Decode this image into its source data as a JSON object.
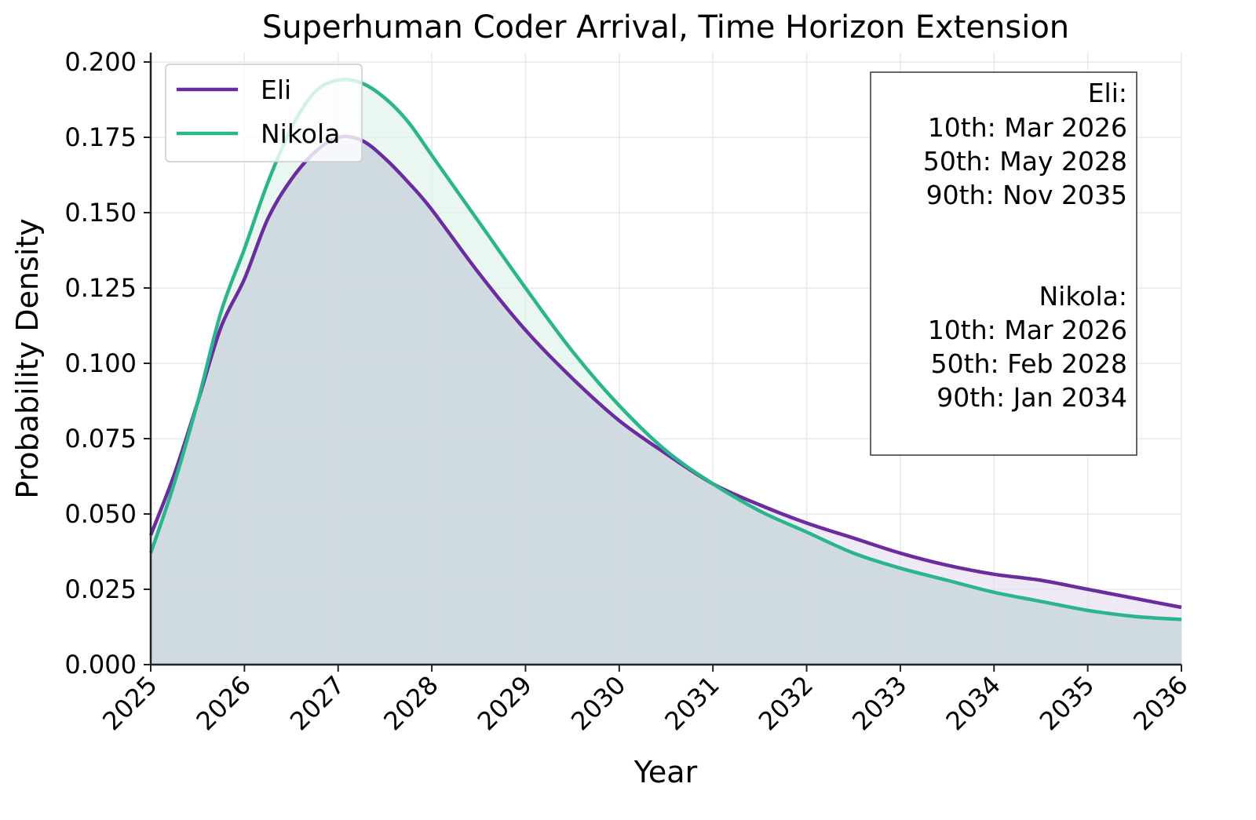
{
  "chart_data": {
    "type": "area",
    "title": "Superhuman Coder Arrival, Time Horizon Extension",
    "xlabel": "Year",
    "ylabel": "Probability Density",
    "xlim": [
      2025,
      2036
    ],
    "ylim": [
      0,
      0.2
    ],
    "x_ticks": [
      "2025",
      "2026",
      "2027",
      "2028",
      "2029",
      "2030",
      "2031",
      "2032",
      "2033",
      "2034",
      "2035",
      "2036"
    ],
    "y_ticks": [
      "0.000",
      "0.025",
      "0.050",
      "0.075",
      "0.100",
      "0.125",
      "0.150",
      "0.175",
      "0.200"
    ],
    "grid": true,
    "legend_position": "top-left",
    "series": [
      {
        "name": "Eli",
        "color": "#6a2c9e",
        "fill": "#e6dcf0",
        "x": [
          2025,
          2025.25,
          2025.5,
          2025.75,
          2026,
          2026.25,
          2026.5,
          2026.75,
          2027,
          2027.25,
          2027.5,
          2027.75,
          2028,
          2028.5,
          2029,
          2029.5,
          2030,
          2030.5,
          2031,
          2031.5,
          2032,
          2032.5,
          2033,
          2033.5,
          2034,
          2034.5,
          2035,
          2035.5,
          2036
        ],
        "y": [
          0.043,
          0.063,
          0.087,
          0.112,
          0.128,
          0.148,
          0.161,
          0.17,
          0.175,
          0.174,
          0.168,
          0.16,
          0.151,
          0.13,
          0.111,
          0.095,
          0.081,
          0.07,
          0.06,
          0.053,
          0.047,
          0.042,
          0.037,
          0.033,
          0.03,
          0.028,
          0.025,
          0.022,
          0.019
        ]
      },
      {
        "name": "Nikola",
        "color": "#2bb58c",
        "fill": "#dff2ea",
        "x": [
          2025,
          2025.25,
          2025.5,
          2025.75,
          2026,
          2026.25,
          2026.5,
          2026.75,
          2027,
          2027.25,
          2027.5,
          2027.75,
          2028,
          2028.5,
          2029,
          2029.5,
          2030,
          2030.5,
          2031,
          2031.5,
          2032,
          2032.5,
          2033,
          2033.5,
          2034,
          2034.5,
          2035,
          2035.5,
          2036
        ],
        "y": [
          0.037,
          0.06,
          0.087,
          0.117,
          0.138,
          0.16,
          0.178,
          0.19,
          0.194,
          0.193,
          0.188,
          0.18,
          0.169,
          0.147,
          0.125,
          0.104,
          0.086,
          0.071,
          0.06,
          0.051,
          0.044,
          0.037,
          0.032,
          0.028,
          0.024,
          0.021,
          0.018,
          0.016,
          0.015
        ]
      }
    ],
    "legend": [
      "Eli",
      "Nikola"
    ],
    "stats_box": {
      "eli": [
        "Eli:",
        "10th: Mar 2026",
        "50th: May 2028",
        "90th: Nov 2035"
      ],
      "nikola": [
        "Nikola:",
        "10th: Mar 2026",
        "50th: Feb 2028",
        "90th: Jan 2034"
      ]
    }
  }
}
